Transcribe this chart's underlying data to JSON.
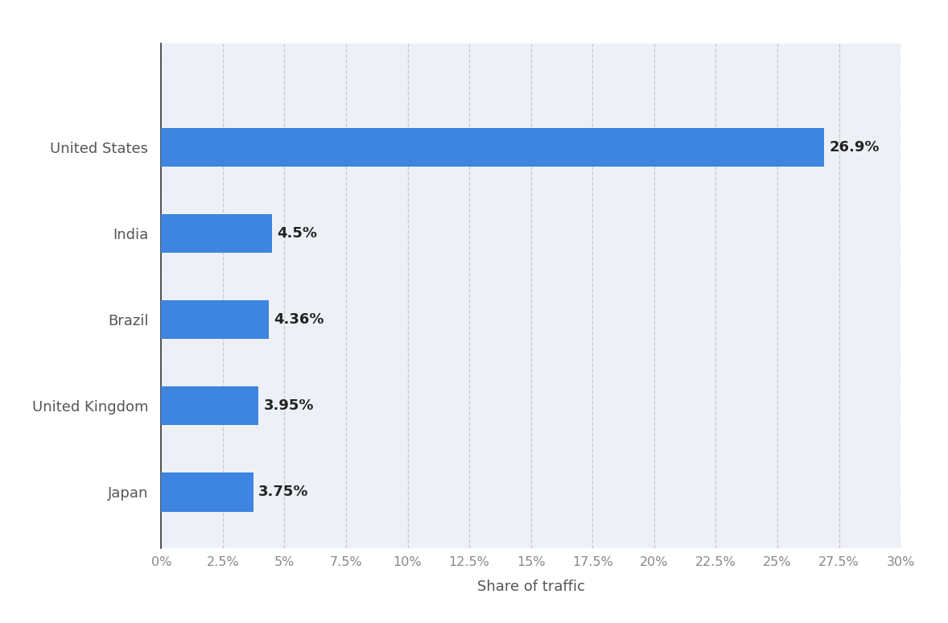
{
  "categories": [
    "Japan",
    "United Kingdom",
    "Brazil",
    "India",
    "United States"
  ],
  "values": [
    3.75,
    3.95,
    4.36,
    4.5,
    26.9
  ],
  "labels": [
    "3.75%",
    "3.95%",
    "4.36%",
    "4.5%",
    "26.9%"
  ],
  "bar_color": "#3d85e0",
  "plot_bg_color": "#edf1f7",
  "outer_bg_color": "#ffffff",
  "xlabel": "Share of traffic",
  "xlim": [
    0,
    30
  ],
  "xticks": [
    0,
    2.5,
    5,
    7.5,
    10,
    12.5,
    15,
    17.5,
    20,
    22.5,
    25,
    27.5,
    30
  ],
  "xtick_labels": [
    "0%",
    "2.5%",
    "5%",
    "7.5%",
    "10%",
    "12.5%",
    "15%",
    "17.5%",
    "20%",
    "22.5%",
    "25%",
    "27.5%",
    "30%"
  ],
  "label_fontsize": 13,
  "tick_fontsize": 11.5,
  "xlabel_fontsize": 13,
  "bar_height": 0.45,
  "ylim": [
    -0.65,
    5.2
  ]
}
